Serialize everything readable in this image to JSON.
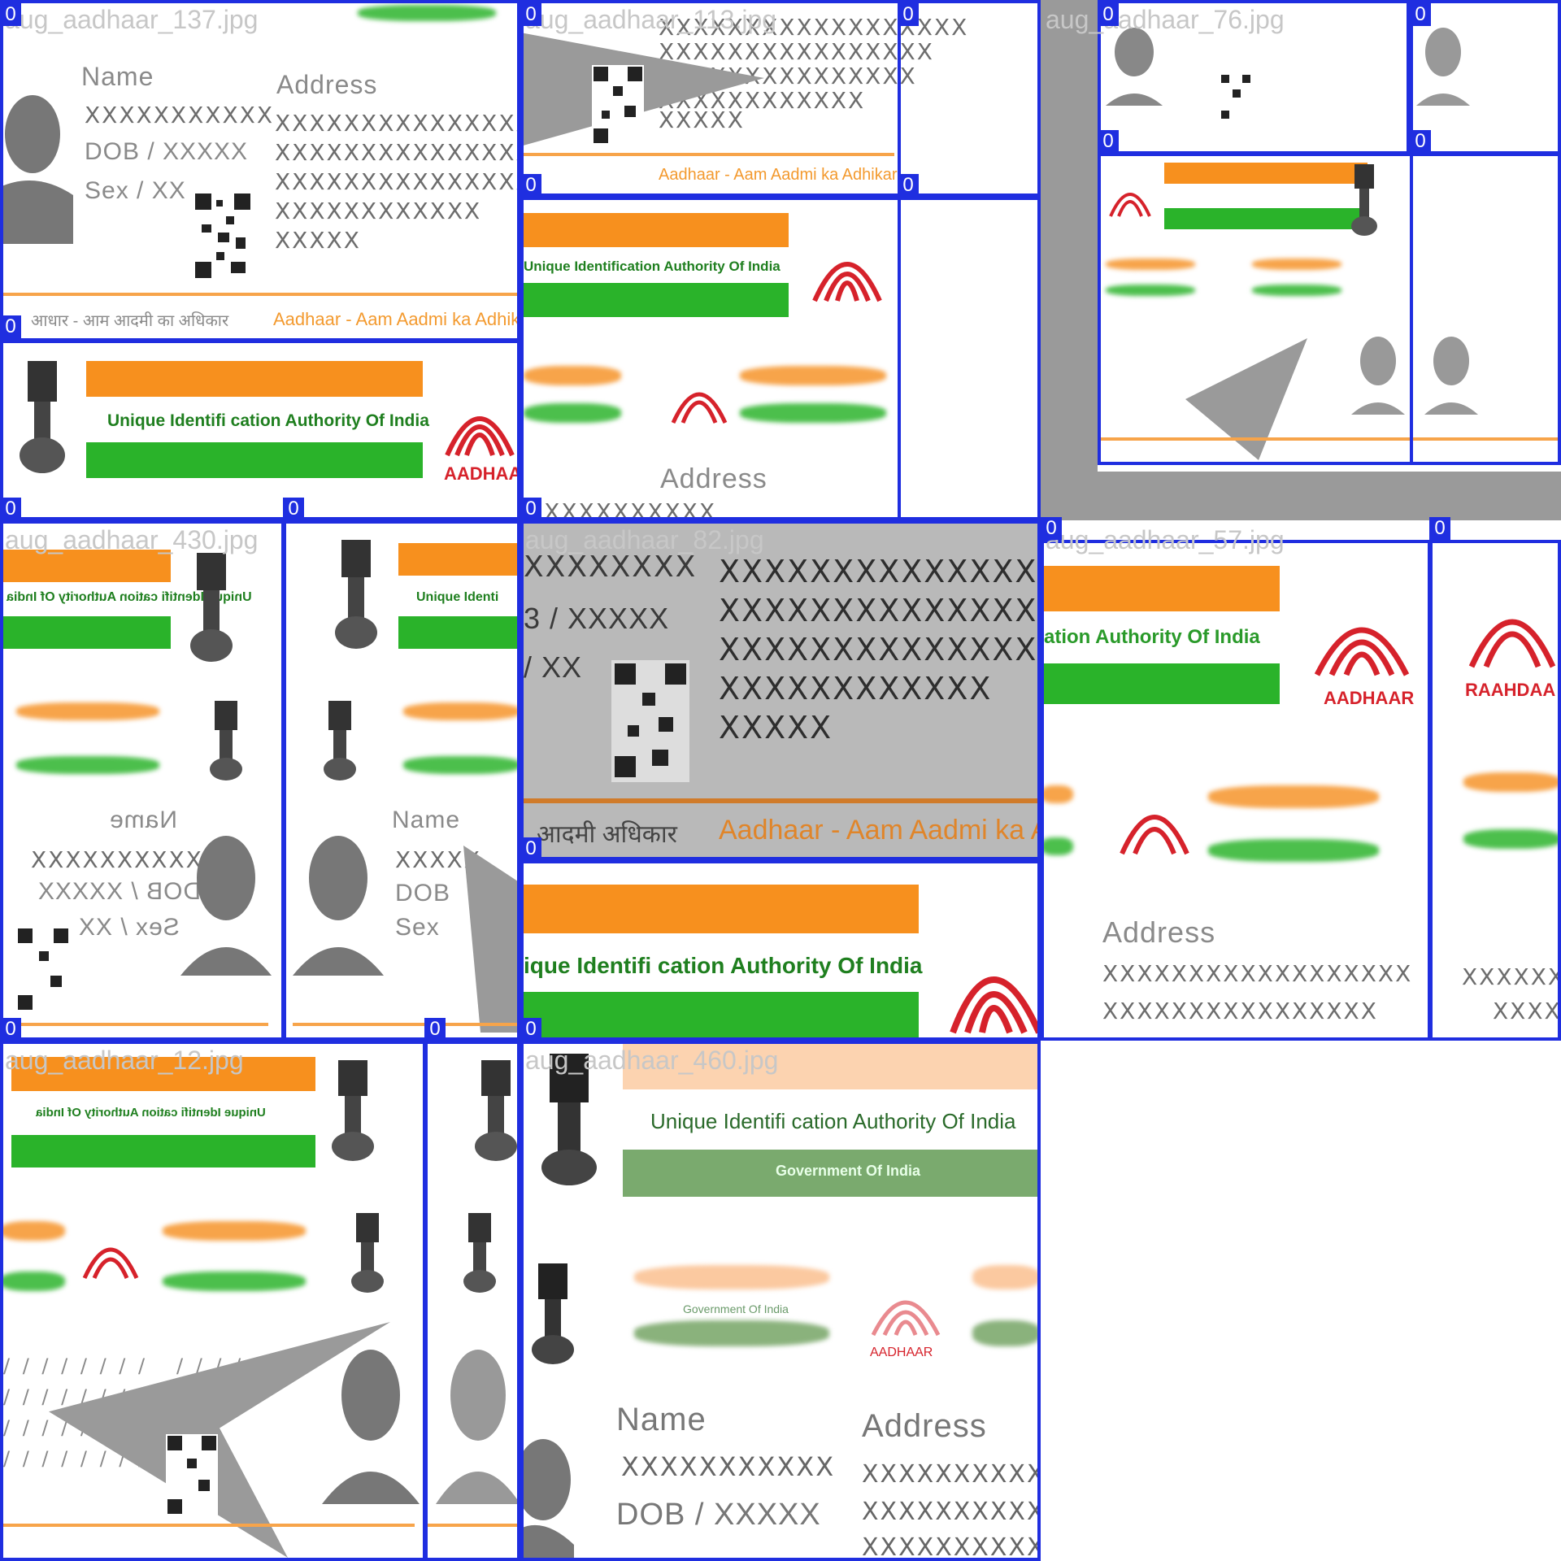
{
  "class_label": "0",
  "tiles": [
    {
      "filename": "aug_aadhaar_137.jpg"
    },
    {
      "filename": "aug_aadhaar_113.jpg"
    },
    {
      "filename": "aug_aadhaar_76.jpg"
    },
    {
      "filename": "aug_aadhaar_430.jpg"
    },
    {
      "filename": "aug_aadhaar_82.jpg"
    },
    {
      "filename": "aug_aadhaar_57.jpg"
    },
    {
      "filename": "aug_aadhaar_12.jpg"
    },
    {
      "filename": "aug_aadhaar_460.jpg"
    }
  ],
  "card": {
    "name_label": "Name",
    "name_value": "XXXXXXXXXXX",
    "dob_label": "DOB / XXXXX",
    "sex_label": "Sex / XX",
    "address_label": "Address",
    "address_lines": [
      "XXXXXXXXXXXXXXXXXX",
      "XXXXXXXXXXXXXXXX",
      "XXXXXXXXXXXXXXX",
      "XXXXXXXXXXXX",
      "XXXXX"
    ],
    "authority": "Unique Identification Authority Of India",
    "authority_short": "Unique Identifi cation Authority Of India",
    "govt": "Government Of India",
    "footer_slogan": "Aadhaar - Aam Aadmi ka Adhikar",
    "footer_slogan_short": "Aadhaar - Aam Aadmi ka Adhika",
    "logo_text": "AADHAAR",
    "logo_text_mirrored": "RAAHDAA",
    "hindi_left": "आधार - आम आदमी का अधिकार"
  },
  "colors": {
    "box": "#1f2ee0",
    "orange": "#f7901e",
    "green": "#2ab32a",
    "logo_red": "#d6222b"
  }
}
